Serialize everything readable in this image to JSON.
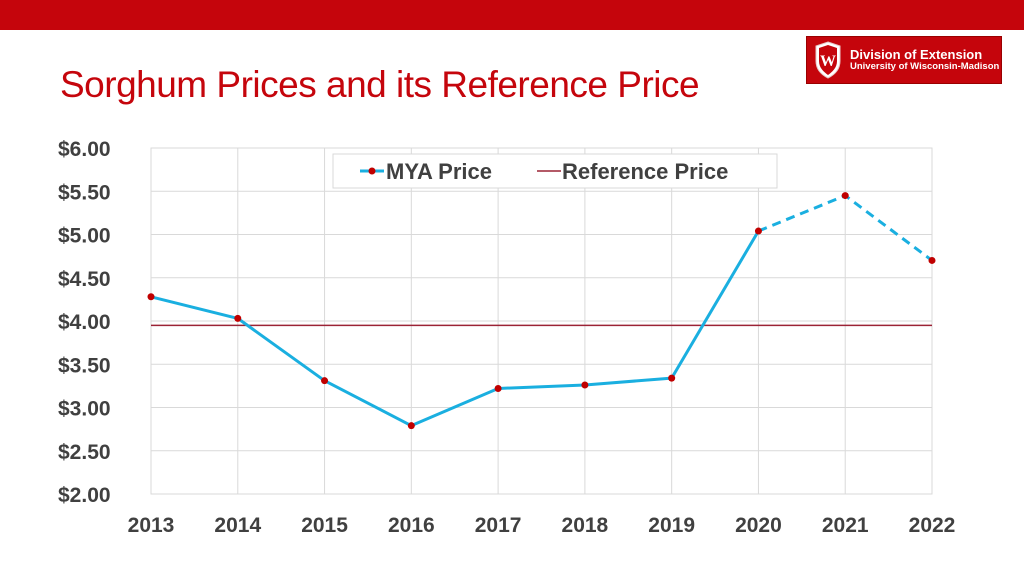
{
  "slide": {
    "title": "Sorghum Prices and its Reference Price"
  },
  "logo": {
    "line1": "Division of Extension",
    "line2": "University of Wisconsin-Madison",
    "crest_letter": "W"
  },
  "colors": {
    "brand_red": "#c5050c",
    "mya_line": "#1aafe0",
    "mya_marker": "#c00000",
    "reference_line": "#9b2335",
    "grid": "#d9d9d9"
  },
  "chart_data": {
    "type": "line",
    "title": "",
    "xlabel": "",
    "ylabel": "",
    "x": [
      "2013",
      "2014",
      "2015",
      "2016",
      "2017",
      "2018",
      "2019",
      "2020",
      "2021",
      "2022"
    ],
    "ylim": [
      2.0,
      6.0
    ],
    "y_ticks": [
      "$2.00",
      "$2.50",
      "$3.00",
      "$3.50",
      "$4.00",
      "$4.50",
      "$5.00",
      "$5.50",
      "$6.00"
    ],
    "grid": true,
    "legend_position": "top-center",
    "series": [
      {
        "name": "MYA Price",
        "values": [
          4.28,
          4.03,
          3.31,
          2.79,
          3.22,
          3.26,
          3.34,
          5.04,
          5.45,
          4.7
        ],
        "dashed_from_index": 7,
        "markers": true
      },
      {
        "name": "Reference Price",
        "values": [
          3.95,
          3.95,
          3.95,
          3.95,
          3.95,
          3.95,
          3.95,
          3.95,
          3.95,
          3.95
        ],
        "markers": false
      }
    ]
  }
}
